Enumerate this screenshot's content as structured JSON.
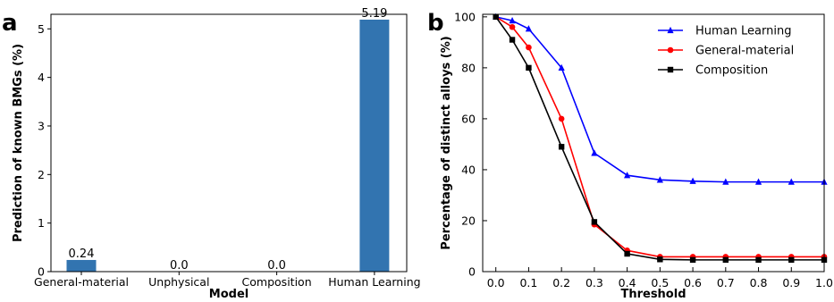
{
  "chart_data": [
    {
      "type": "bar",
      "panel": "a",
      "title": "",
      "xlabel": "Model",
      "ylabel": "Prediction of known BMGs (%)",
      "categories": [
        "General-material",
        "Unphysical",
        "Composition",
        "Human Learning"
      ],
      "values": [
        0.24,
        0.0,
        0.0,
        5.19
      ],
      "value_labels": [
        "0.24",
        "0.0",
        "0.0",
        "5.19"
      ],
      "ylim": [
        0,
        5.3
      ],
      "yticks": [
        0,
        1,
        2,
        3,
        4,
        5
      ],
      "bar_color": "#3274b0",
      "grid": false
    },
    {
      "type": "line",
      "panel": "b",
      "title": "",
      "xlabel": "Threshold",
      "ylabel": "Percentage of distinct alloys (%)",
      "xlim": [
        -0.04,
        1.0
      ],
      "ylim": [
        0,
        101
      ],
      "xticks": [
        0.0,
        0.1,
        0.2,
        0.3,
        0.4,
        0.5,
        0.6,
        0.7,
        0.8,
        0.9,
        1.0
      ],
      "xtick_labels": [
        "0.0",
        "0.1",
        "0.2",
        "0.3",
        "0.4",
        "0.5",
        "0.6",
        "0.7",
        "0.8",
        "0.9",
        "1.0"
      ],
      "yticks": [
        0,
        20,
        40,
        60,
        80,
        100
      ],
      "legend_position": "top-right",
      "grid": false,
      "x": [
        0.0,
        0.05,
        0.1,
        0.2,
        0.3,
        0.4,
        0.5,
        0.6,
        0.7,
        0.8,
        0.9,
        1.0
      ],
      "series": [
        {
          "name": "Human Learning",
          "color": "#0000ff",
          "marker": "triangle",
          "values": [
            100,
            98.5,
            95.3,
            80,
            46.5,
            37.8,
            36,
            35.5,
            35.2,
            35.2,
            35.2,
            35.2
          ]
        },
        {
          "name": "General-material",
          "color": "#ff0000",
          "marker": "circle",
          "values": [
            100,
            96,
            88,
            60,
            18.5,
            8.3,
            5.8,
            5.8,
            5.8,
            5.8,
            5.8,
            5.8
          ]
        },
        {
          "name": "Composition",
          "color": "#000000",
          "marker": "square",
          "values": [
            100,
            91,
            80,
            49,
            19.5,
            7,
            4.8,
            4.6,
            4.6,
            4.6,
            4.6,
            4.6
          ]
        }
      ]
    }
  ]
}
